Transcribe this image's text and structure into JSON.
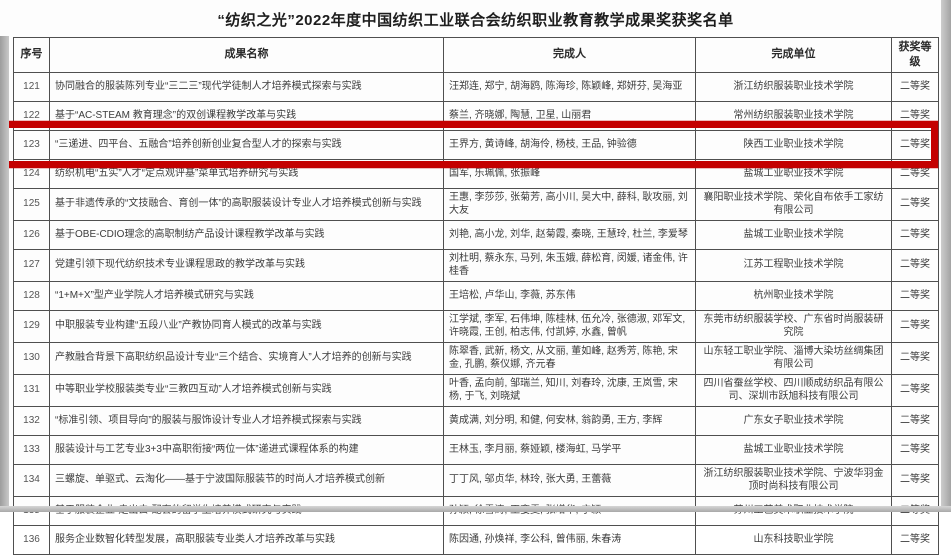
{
  "page": {
    "title": "“纺织之光”2022年度中国纺织工业联合会纺织职业教育教学成果奖获奖名单"
  },
  "highlight": {
    "color": "#c40000",
    "highlighted_row_no": "123"
  },
  "table": {
    "columns": [
      "序号",
      "成果名称",
      "完成人",
      "完成单位",
      "获奖等级"
    ],
    "rows": [
      {
        "no": "121",
        "name": "协同融合的服装陈列专业“三二三”现代学徒制人才培养模式探索与实践",
        "people": "汪郑连, 郑宁, 胡海鸥, 陈海珍, 陈颖峰, 郑妍芬, 吴海亚",
        "unit": "浙江纺织服装职业技术学院",
        "grade": "二等奖",
        "highlighted": false
      },
      {
        "no": "122",
        "name": "基于“AC-STEAM 教育理念”的双创课程教学改革与实践",
        "people": "蔡兰, 齐晓娜, 陶慧, 卫星, 山丽君",
        "unit": "常州纺织服装职业技术学院",
        "grade": "二等奖",
        "highlighted": false
      },
      {
        "no": "123",
        "name": "“三递进、四平台、五融合”培养创新创业复合型人才的探索与实践",
        "people": "王界方, 黄诗峰, 胡海伶, 杨枝, 王品, 钟验德",
        "unit": "陕西工业职业技术学院",
        "grade": "二等奖",
        "highlighted": true
      },
      {
        "no": "124",
        "name": "纺织机电“五实”人才“定点观评基”菜单式培养研究与实践",
        "people": "国军, 乐珮佩, 张振峰",
        "unit": "盐城工业职业技术学院",
        "grade": "二等奖",
        "highlighted": false
      },
      {
        "no": "125",
        "name": "基于非遗传承的“文技融合、育创一体”的高职服装设计专业人才培养模式创新与实践",
        "people": "王惠, 李莎莎, 张菊芳, 高小川, 吴大中, 薛科, 耿攻丽, 刘大友",
        "unit": "襄阳职业技术学院、荣化自布依手工家纺有限公司",
        "grade": "二等奖",
        "highlighted": false
      },
      {
        "no": "126",
        "name": "基于OBE-CDIO理念的高职制纺产品设计课程教学改革与实践",
        "people": "刘艳, 高小龙, 刘华, 赵菊霞, 秦晓, 王慧玲, 杜兰, 李爱琴",
        "unit": "盐城工业职业技术学院",
        "grade": "二等奖",
        "highlighted": false
      },
      {
        "no": "127",
        "name": "党建引领下现代纺织技术专业课程思政的教学改革与实践",
        "people": "刘杜明, 蔡永东, 马列, 朱玉娥, 薛松育, 闵媛, 诸金伟, 许桂香",
        "unit": "江苏工程职业技术学院",
        "grade": "二等奖",
        "highlighted": false
      },
      {
        "no": "128",
        "name": "“1+M+X”型产业学院人才培养模式研究与实践",
        "people": "王培松, 卢华山, 李薇, 苏东伟",
        "unit": "杭州职业技术学院",
        "grade": "二等奖",
        "highlighted": false
      },
      {
        "no": "129",
        "name": "中职服装专业构建“五段八业”产教协同育人模式的改革与实践",
        "people": "江学斌, 李军, 石伟坤, 陈桂林, 伍允冷, 张德淑, 邓军文, 许晓霞, 王创, 柏志伟, 付凯婷, 水鑫, 曾帆",
        "unit": "东莞市纺织服装学校、广东省时尚服装研究院",
        "grade": "二等奖",
        "highlighted": false
      },
      {
        "no": "130",
        "name": "产教融合背景下高职纺织品设计专业“三个结合、实境育人”人才培养的创新与实践",
        "people": "陈翠香, 武新, 杨文, 从文丽, 董如峰, 赵秀芳, 陈艳, 宋金, 孔鹏, 蔡仪娜, 齐元春",
        "unit": "山东轻工职业学院、淄博大染坊丝绸集团有限公司",
        "grade": "二等奖",
        "highlighted": false
      },
      {
        "no": "131",
        "name": "中等职业学校服装类专业“三教四互动”人才培养模式创新与实践",
        "people": "叶香, 孟向前, 邹瑞兰, 知川, 刘春玲, 沈康, 王岚雪, 宋杨, 于飞, 刘晓斌",
        "unit": "四川省蚕丝学校、四川顺成纺织品有限公司、深圳市跃旭科技有限公司",
        "grade": "二等奖",
        "highlighted": false
      },
      {
        "no": "132",
        "name": "“标准引领、项目导向”的服装与服饰设计专业人才培养模式探索与实践",
        "people": "黄成满, 刘分明, 和健, 何安林, 翁韵勇, 王方, 李辉",
        "unit": "广东女子职业技术学院",
        "grade": "二等奖",
        "highlighted": false
      },
      {
        "no": "133",
        "name": "服装设计与工艺专业3+3中高职衔接“两位一体”递进式课程体系的构建",
        "people": "王林玉, 李月丽, 蔡娅颖, 楼海虹, 马学平",
        "unit": "盐城工业职业技术学院",
        "grade": "二等奖",
        "highlighted": false
      },
      {
        "no": "134",
        "name": "三螺旋、单驱式、云淘化——基于宁波国际服装节的时尚人才培养模式创新",
        "people": "丁丁风, 邬贞华, 林玲, 张大勇, 王蕾薇",
        "unit": "浙江纺织服装职业技术学院、宁波华羽金顶时尚科技有限公司",
        "grade": "二等奖",
        "highlighted": false
      },
      {
        "no": "135",
        "name": "基于服装企业“走出去”配套的留学生培养模式研究与实践",
        "people": "孙颖, 徐雪涛, 巫娈雯, 张增华, 宁颖",
        "unit": "苏州工艺美术职业技术学院",
        "grade": "二等奖",
        "highlighted": false
      },
      {
        "no": "136",
        "name": "服务企业数智化转型发展，高职服装专业类人才培养改革与实践",
        "people": "陈因通, 孙焕祥, 李公科, 曾伟丽, 朱春涛",
        "unit": "山东科技职业学院",
        "grade": "二等奖",
        "highlighted": false
      }
    ]
  }
}
